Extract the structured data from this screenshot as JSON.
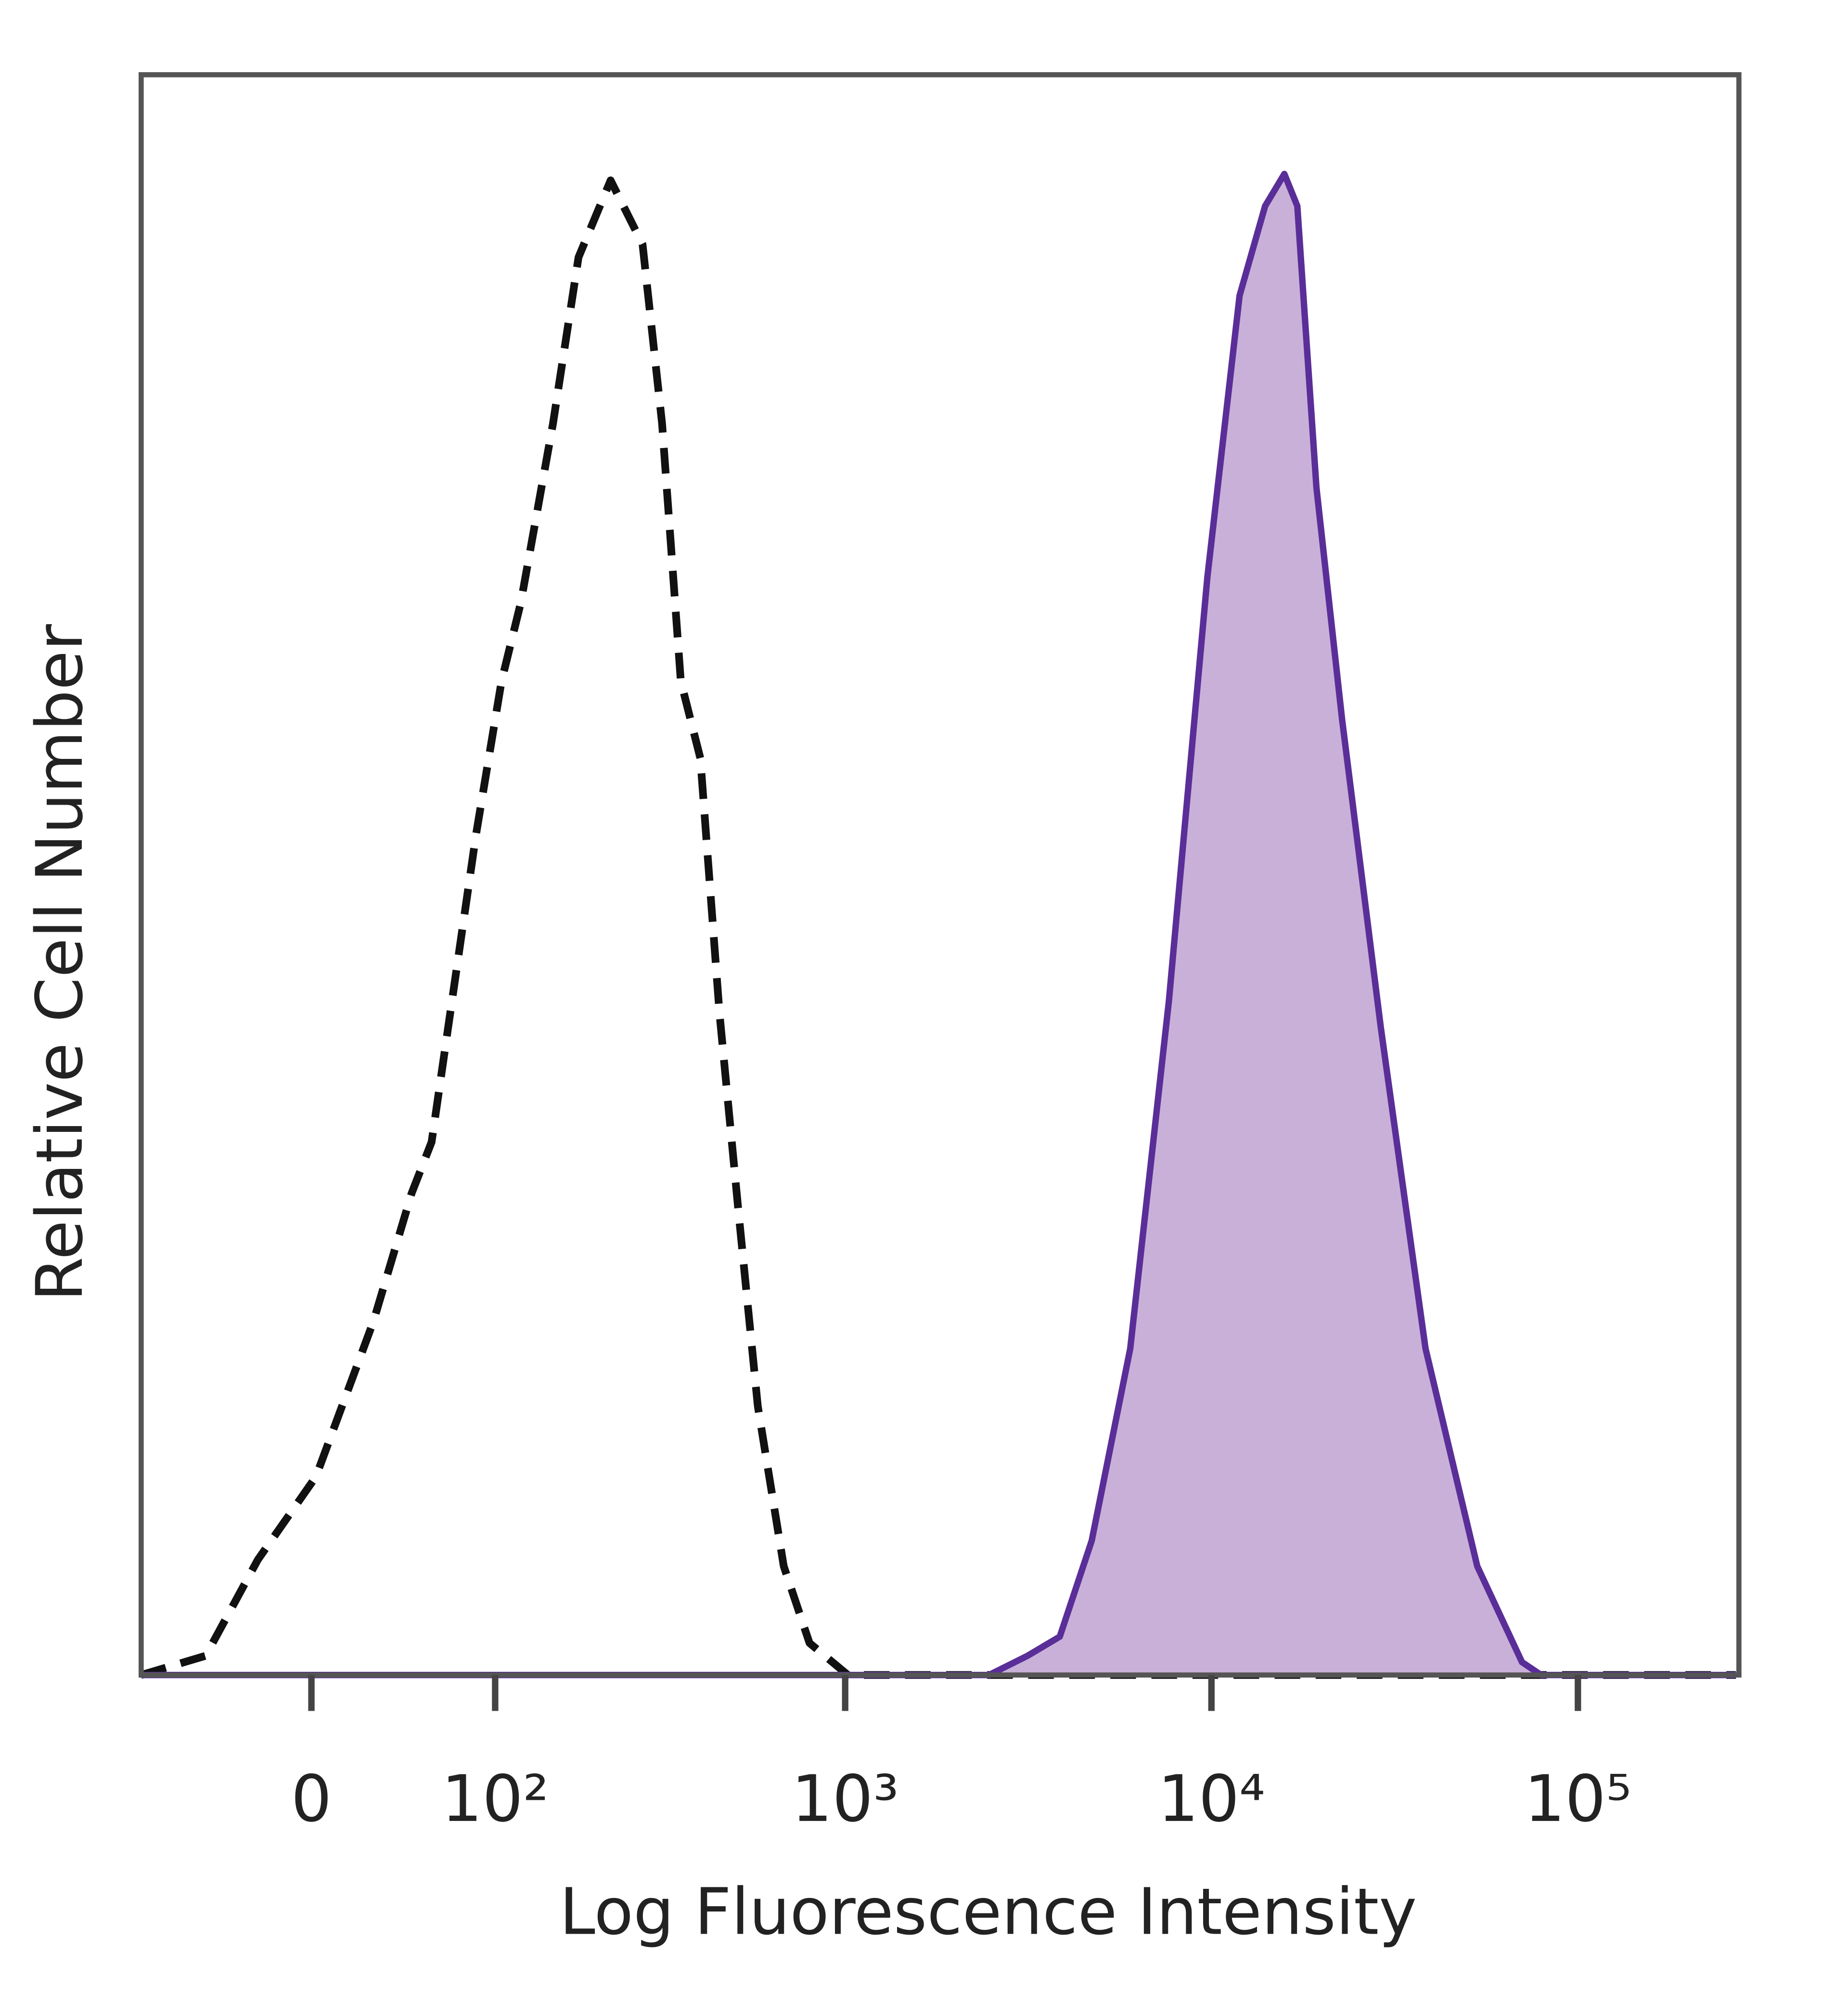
{
  "chart_data": {
    "type": "histogram-overlay",
    "x_label": "Log Fluorescence Intensity",
    "y_label": "Relative Cell Number",
    "x_scale": "biexponential",
    "xlim": [
      -90,
      275000
    ],
    "ylim": [
      0,
      100
    ],
    "xticks": [
      0,
      {
        "value": 100,
        "label": "10²"
      },
      {
        "value": 1000,
        "label": "10³"
      },
      {
        "value": 10000,
        "label": "10⁴"
      },
      {
        "value": 100000,
        "label": "10⁵"
      }
    ],
    "series": [
      {
        "color": "#111111",
        "dashed": true,
        "x": [
          -90,
          -50,
          -24,
          2,
          28,
          47,
          58,
          69,
          86,
          105,
          121,
          152,
          181,
          224,
          276,
          313,
          353,
          400,
          452,
          510,
          576,
          679,
          799,
          1017,
          270000
        ],
        "values": [
          0,
          1.2,
          7.2,
          12.4,
          22.1,
          30.1,
          33.3,
          41.3,
          52.5,
          62.1,
          67.0,
          78.2,
          88.6,
          93.4,
          89.4,
          78.2,
          62.1,
          57.3,
          41.3,
          28.9,
          16.8,
          6.8,
          2.0,
          0,
          0
        ]
      },
      {
        "color": "#5a2e98",
        "fill": "#c9b0d8",
        "dashed": false,
        "x": [
          -90,
          2470,
          3150,
          3856,
          4713,
          6005,
          7650,
          9750,
          11930,
          14010,
          15810,
          17150,
          19350,
          22730,
          28960,
          38380,
          53130,
          70370,
          79380,
          270000
        ],
        "values": [
          0,
          0,
          1.2,
          2.4,
          8.4,
          20.4,
          42.1,
          68.6,
          86.2,
          91.8,
          93.8,
          91.8,
          74.2,
          59.7,
          40.5,
          20.4,
          6.8,
          0.8,
          0,
          0
        ]
      }
    ]
  }
}
